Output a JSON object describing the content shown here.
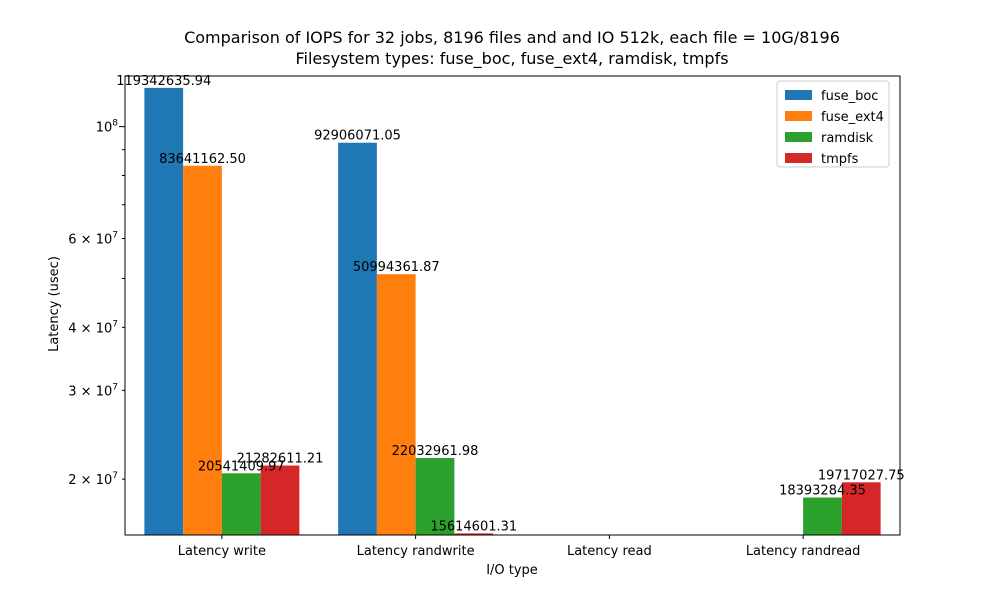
{
  "chart_data": {
    "type": "bar",
    "title_line1": "Comparison of IOPS for 32 jobs, 8196 files and  and IO 512k, each file = 10G/8196",
    "title_line2": "Filesystem types: fuse_boc, fuse_ext4, ramdisk, tmpfs",
    "xlabel": "I/O type",
    "ylabel": "Latency (usec)",
    "yscale": "log",
    "ylim": [
      15500000,
      126000000
    ],
    "grid": false,
    "legend_position": "top-right",
    "categories": [
      "Latency write",
      "Latency randwrite",
      "Latency read",
      "Latency randread"
    ],
    "series": [
      {
        "name": "fuse_boc",
        "color": "#1f77b4",
        "values": [
          119342635.94,
          92906071.05,
          null,
          null
        ],
        "labels": [
          "119342635.94",
          "92906071.05",
          "",
          ""
        ]
      },
      {
        "name": "fuse_ext4",
        "color": "#ff7f0e",
        "values": [
          83641162.5,
          50994361.87,
          null,
          null
        ],
        "labels": [
          "83641162.50",
          "50994361.87",
          "",
          ""
        ]
      },
      {
        "name": "ramdisk",
        "color": "#2ca02c",
        "values": [
          20541409.97,
          22032961.98,
          null,
          18393284.35
        ],
        "labels": [
          "20541409.97",
          "22032961.98",
          "",
          "18393284.35"
        ]
      },
      {
        "name": "tmpfs",
        "color": "#d62728",
        "values": [
          21282611.21,
          15614601.31,
          null,
          19717027.75
        ],
        "labels": [
          "21282611.21",
          "15614601.31",
          "",
          "19717027.75"
        ]
      }
    ],
    "y_ticks_major": [
      {
        "value": 100000000,
        "mantissa": "10",
        "exponent": "8"
      }
    ],
    "y_ticks_minor": [
      {
        "value": 20000000,
        "mantissa": "2 × 10",
        "exponent": "7"
      },
      {
        "value": 30000000,
        "mantissa": "3 × 10",
        "exponent": "7"
      },
      {
        "value": 40000000,
        "mantissa": "4 × 10",
        "exponent": "7"
      },
      {
        "value": 60000000,
        "mantissa": "6 × 10",
        "exponent": "7"
      }
    ],
    "y_ticks_minor_unlabeled": [
      50000000,
      70000000,
      80000000,
      90000000
    ]
  }
}
